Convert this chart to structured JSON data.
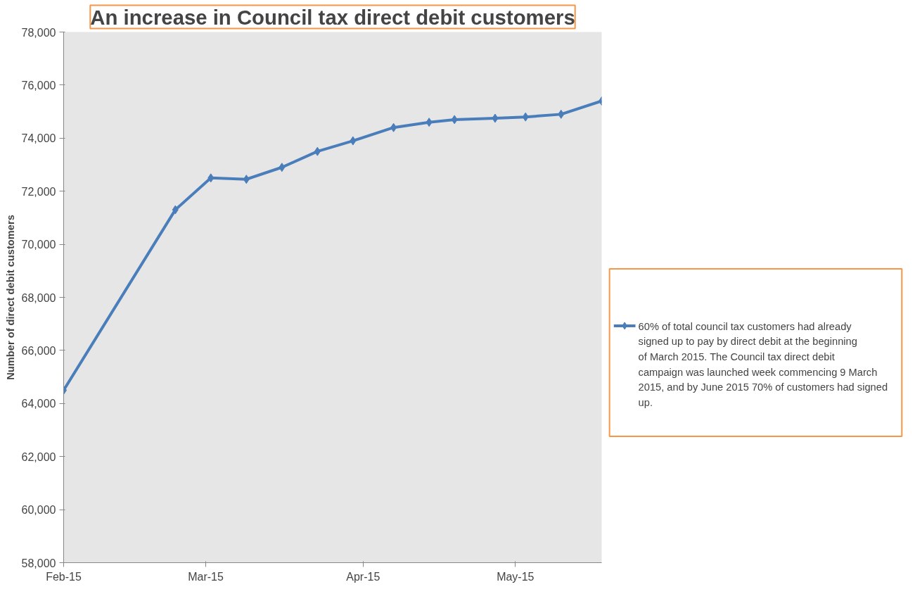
{
  "chart_data": {
    "type": "line",
    "title": "An increase in Council tax direct debit customers",
    "ylabel": "Number of direct debit customers",
    "x": [
      "2015-02-01",
      "2015-02-23",
      "2015-03-02",
      "2015-03-09",
      "2015-03-16",
      "2015-03-23",
      "2015-03-30",
      "2015-04-07",
      "2015-04-14",
      "2015-04-19",
      "2015-04-27",
      "2015-05-03",
      "2015-05-10",
      "2015-05-18"
    ],
    "series": [
      {
        "name": "60% of total council tax customers had already signed up to pay by direct debit at the beginning of March 2015. The Council tax direct debit campaign was launched week commencing 9 March 2015, and by June 2015 70% of customers had signed up.",
        "color": "#4a7ebb",
        "values": [
          64500,
          71300,
          72500,
          72450,
          72900,
          73500,
          73900,
          74400,
          74600,
          74700,
          74750,
          74800,
          74900,
          75400
        ]
      }
    ],
    "xlim": [
      "2015-02-01",
      "2015-05-18"
    ],
    "xticks": [
      {
        "value": "2015-02-01",
        "label": "Feb-15"
      },
      {
        "value": "2015-03-01",
        "label": "Mar-15"
      },
      {
        "value": "2015-04-01",
        "label": "Apr-15"
      },
      {
        "value": "2015-05-01",
        "label": "May-15"
      }
    ],
    "ylim": [
      58000,
      78000
    ],
    "yticks": [
      {
        "value": 58000,
        "label": "58,000"
      },
      {
        "value": 60000,
        "label": "60,000"
      },
      {
        "value": 62000,
        "label": "62,000"
      },
      {
        "value": 64000,
        "label": "64,000"
      },
      {
        "value": 66000,
        "label": "66,000"
      },
      {
        "value": 68000,
        "label": "68,000"
      },
      {
        "value": 70000,
        "label": "70,000"
      },
      {
        "value": 72000,
        "label": "72,000"
      },
      {
        "value": 74000,
        "label": "74,000"
      },
      {
        "value": 76000,
        "label": "76,000"
      },
      {
        "value": 78000,
        "label": "78,000"
      }
    ],
    "legend": "right",
    "marker": "diamond",
    "line_style": "solid"
  }
}
